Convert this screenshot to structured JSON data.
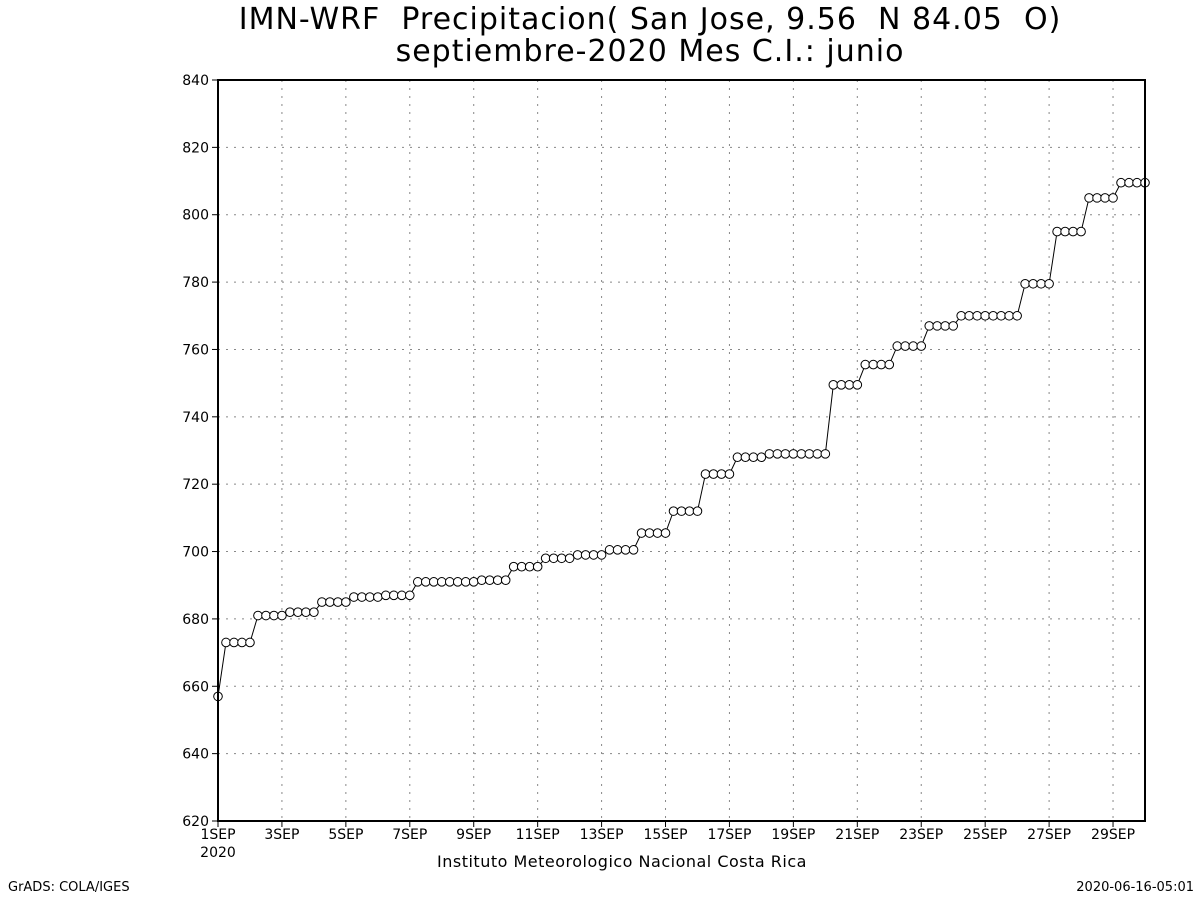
{
  "title_line1": "IMN-WRF  Precipitacion( San Jose, 9.56  N 84.05  O)",
  "title_line2": "septiembre-2020 Mes C.I.: junio",
  "institution": "Instituto Meteorologico Nacional Costa Rica",
  "credit_left": "GrADS: COLA/IGES",
  "credit_right": "2020-06-16-05:01",
  "x_year_label": "2020",
  "chart_data": {
    "type": "line",
    "marker": "open-circle",
    "ylim": [
      620,
      840
    ],
    "yticks": [
      "620",
      "640",
      "660",
      "680",
      "700",
      "720",
      "740",
      "760",
      "780",
      "800",
      "820",
      "840"
    ],
    "xlim": [
      1,
      30
    ],
    "xticks": [
      {
        "day": 1,
        "label": "1SEP"
      },
      {
        "day": 3,
        "label": "3SEP"
      },
      {
        "day": 5,
        "label": "5SEP"
      },
      {
        "day": 7,
        "label": "7SEP"
      },
      {
        "day": 9,
        "label": "9SEP"
      },
      {
        "day": 11,
        "label": "11SEP"
      },
      {
        "day": 13,
        "label": "13SEP"
      },
      {
        "day": 15,
        "label": "15SEP"
      },
      {
        "day": 17,
        "label": "17SEP"
      },
      {
        "day": 19,
        "label": "19SEP"
      },
      {
        "day": 21,
        "label": "21SEP"
      },
      {
        "day": 23,
        "label": "23SEP"
      },
      {
        "day": 25,
        "label": "25SEP"
      },
      {
        "day": 27,
        "label": "27SEP"
      },
      {
        "day": 29,
        "label": "29SEP"
      }
    ],
    "grid": true,
    "time_step_days": 0.25,
    "start_day": 1,
    "values": [
      657,
      673,
      673,
      673,
      673,
      681,
      681,
      681,
      681,
      682,
      682,
      682,
      682,
      685,
      685,
      685,
      685,
      686.5,
      686.5,
      686.5,
      686.5,
      687,
      687,
      687,
      687,
      691,
      691,
      691,
      691,
      691,
      691,
      691,
      691,
      691.5,
      691.5,
      691.5,
      691.5,
      695.5,
      695.5,
      695.5,
      695.5,
      698,
      698,
      698,
      698,
      699,
      699,
      699,
      699,
      700.5,
      700.5,
      700.5,
      700.5,
      705.5,
      705.5,
      705.5,
      705.5,
      712,
      712,
      712,
      712,
      723,
      723,
      723,
      723,
      728,
      728,
      728,
      728,
      729,
      729,
      729,
      729,
      729,
      729,
      729,
      729,
      749.5,
      749.5,
      749.5,
      749.5,
      755.5,
      755.5,
      755.5,
      755.5,
      761,
      761,
      761,
      761,
      767,
      767,
      767,
      767,
      770,
      770,
      770,
      770,
      770,
      770,
      770,
      770,
      779.5,
      779.5,
      779.5,
      779.5,
      795,
      795,
      795,
      795,
      805,
      805,
      805,
      805,
      809.5,
      809.5,
      809.5,
      809.5
    ]
  }
}
